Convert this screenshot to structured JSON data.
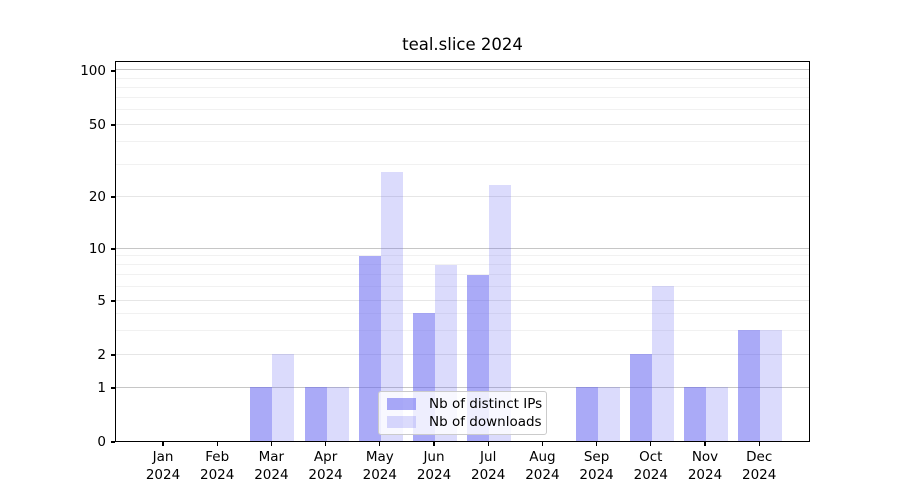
{
  "chart_data": {
    "type": "bar",
    "title": "teal.slice 2024",
    "categories": [
      "Jan",
      "Feb",
      "Mar",
      "Apr",
      "May",
      "Jun",
      "Jul",
      "Aug",
      "Sep",
      "Oct",
      "Nov",
      "Dec"
    ],
    "x_tick_line2": "2024",
    "series": [
      {
        "name": "Nb of distinct IPs",
        "color": "rgba(100,100,240,0.55)",
        "values": [
          0,
          0,
          1,
          1,
          9,
          4,
          7,
          0,
          1,
          2,
          1,
          3
        ]
      },
      {
        "name": "Nb of downloads",
        "color": "rgba(100,100,240,0.23)",
        "values": [
          0,
          0,
          2,
          1,
          27,
          8,
          23,
          0,
          1,
          6,
          1,
          3
        ]
      }
    ],
    "y_ticks": [
      0,
      1,
      2,
      5,
      10,
      20,
      50,
      100
    ],
    "y_minor_ticks": [
      3,
      4,
      6,
      7,
      8,
      9,
      30,
      40,
      60,
      70,
      80,
      90
    ],
    "y_major_grid_ticks": [
      1,
      10,
      100
    ],
    "yscale": "symlog",
    "ylim": [
      0,
      114
    ],
    "xlabel": "",
    "ylabel": "",
    "grid": true,
    "legend_position": "lower center",
    "colors": {
      "distinct_ips_rendered": "#aaaaf7",
      "downloads_rendered": "#dbdbf8",
      "grid_major": "#c6c6c6",
      "grid_minor": "#f1f1f1",
      "axis": "#000000",
      "background": "#ffffff"
    }
  }
}
